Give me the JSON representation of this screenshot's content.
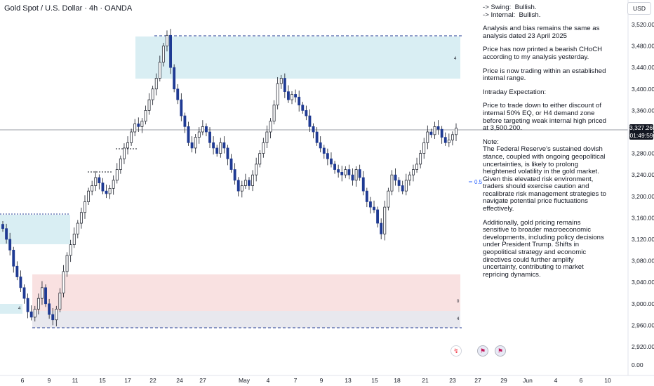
{
  "header": {
    "symbol_title": "Gold Spot / U.S. Dollar · 4h · OANDA"
  },
  "axis": {
    "currency": "USD",
    "y_ticks": [
      "3,520.00",
      "3,480.00",
      "3,440.00",
      "3,400.00",
      "3,360.00",
      "3,320.00",
      "3,280.00",
      "3,240.00",
      "3,200.00",
      "3,160.00",
      "3,120.00",
      "3,080.00",
      "3,040.00",
      "3,000.00",
      "2,960.00",
      "2,920.00",
      "0.00"
    ],
    "x_ticks": [
      "6",
      "9",
      "11",
      "15",
      "17",
      "22",
      "24",
      "27",
      "May",
      "4",
      "7",
      "9",
      "13",
      "15",
      "18",
      "21",
      "23",
      "27",
      "29",
      "Jun",
      "4",
      "6",
      "10"
    ]
  },
  "current_price": {
    "value": "3,327.265",
    "countdown": "01:49:59"
  },
  "levels": {
    "fib_label": "0.5",
    "zone_label_top": "4",
    "zone_label_mid": "0",
    "zone_label_low": "4",
    "zone_label_left": "4"
  },
  "notes": [
    "-> Swing:  Bullish.\n-> Internal:  Bullish.",
    "Analysis and bias remains the same as analysis dated 23 April 2025",
    "Price has now printed a bearish CHoCH according to my analysis yesterday.",
    "Price is now trading within an established internal range.",
    "Intraday Expectation:",
    "Price to trade down to either discount of internal 50% EQ, or H4 demand zone before targeting weak internal high priced at 3,500.200.",
    "Note:\nThe Federal Reserve's sustained dovish stance, coupled with ongoing geopolitical uncertainties, is likely to prolong heightened volatility in the gold market. Given this elevated risk environment, traders should exercise caution and recalibrate risk management strategies to navigate potential price fluctuations effectively.",
    "Additionally, gold pricing remains sensitive to broader macroeconomic developments, including policy decisions under President Trump. Shifts in geopolitical strategy and economic directives could further amplify uncertainty, contributing to market repricing dynamics."
  ],
  "colors": {
    "bull": "#ffffff",
    "bear": "#1f3a93",
    "wick": "#131722",
    "supply_zone": "#d9eef3",
    "demand_zone": "#f9e1e1",
    "range_zone": "#e8e8ee"
  },
  "chart_data": {
    "type": "candlestick",
    "title": "Gold Spot / U.S. Dollar · 4h · OANDA",
    "ylim": [
      2920,
      3540
    ],
    "current_price": 3327.265,
    "close_series": [
      3140,
      3120,
      3100,
      3070,
      3050,
      3030,
      3010,
      2985,
      2975,
      2990,
      3010,
      3030,
      3000,
      2980,
      2970,
      2990,
      3020,
      3060,
      3090,
      3110,
      3130,
      3150,
      3170,
      3190,
      3210,
      3220,
      3235,
      3225,
      3210,
      3205,
      3215,
      3230,
      3250,
      3270,
      3290,
      3300,
      3320,
      3335,
      3330,
      3340,
      3360,
      3380,
      3400,
      3420,
      3450,
      3480,
      3500,
      3440,
      3400,
      3380,
      3350,
      3330,
      3300,
      3290,
      3310,
      3320,
      3330,
      3320,
      3300,
      3290,
      3280,
      3300,
      3290,
      3270,
      3250,
      3230,
      3210,
      3220,
      3230,
      3220,
      3240,
      3260,
      3280,
      3300,
      3320,
      3340,
      3370,
      3410,
      3420,
      3395,
      3380,
      3390,
      3385,
      3370,
      3360,
      3350,
      3330,
      3320,
      3300,
      3290,
      3280,
      3270,
      3260,
      3250,
      3245,
      3240,
      3250,
      3240,
      3230,
      3250,
      3235,
      3210,
      3190,
      3180,
      3175,
      3150,
      3130,
      3180,
      3210,
      3240,
      3230,
      3220,
      3210,
      3230,
      3240,
      3250,
      3260,
      3280,
      3300,
      3320,
      3315,
      3330,
      3325,
      3310,
      3300,
      3305,
      3315,
      3327
    ]
  }
}
